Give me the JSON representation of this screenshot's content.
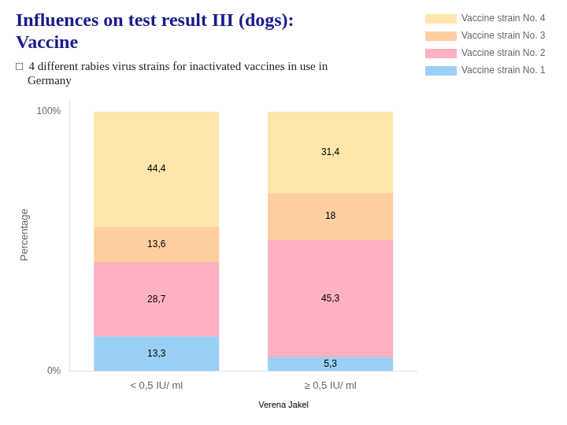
{
  "chart_data": {
    "type": "bar",
    "stacked": true,
    "title": "Influences on test result III (dogs):\nVaccine",
    "subtitle": "□  4 different rabies virus strains for inactivated vaccines in use in\n    Germany",
    "annotations": [
      "Verena Jakel"
    ],
    "categories": [
      "< 0,5 IU/ ml",
      "≥ 0,5 IU/ ml"
    ],
    "series": [
      {
        "name": "Vaccine strain No. 1",
        "values": [
          13.3,
          5.3
        ],
        "value_labels": [
          "13,3",
          "5,3"
        ]
      },
      {
        "name": "Vaccine strain No. 2",
        "values": [
          28.7,
          45.3
        ],
        "value_labels": [
          "28,7",
          "45,3"
        ]
      },
      {
        "name": "Vaccine strain No. 3",
        "values": [
          13.6,
          18.0
        ],
        "value_labels": [
          "13,6",
          "18"
        ]
      },
      {
        "name": "Vaccine strain No. 4",
        "values": [
          44.4,
          31.4
        ],
        "value_labels": [
          "44,4",
          "31,4"
        ]
      }
    ],
    "ylabel": "Percentage",
    "ylim": [
      0,
      105
    ],
    "yticks": [
      {
        "value": 0,
        "label": "0%"
      },
      {
        "value": 100,
        "label": "100%"
      }
    ],
    "grid": false,
    "legend": "right",
    "data_labels": true
  }
}
